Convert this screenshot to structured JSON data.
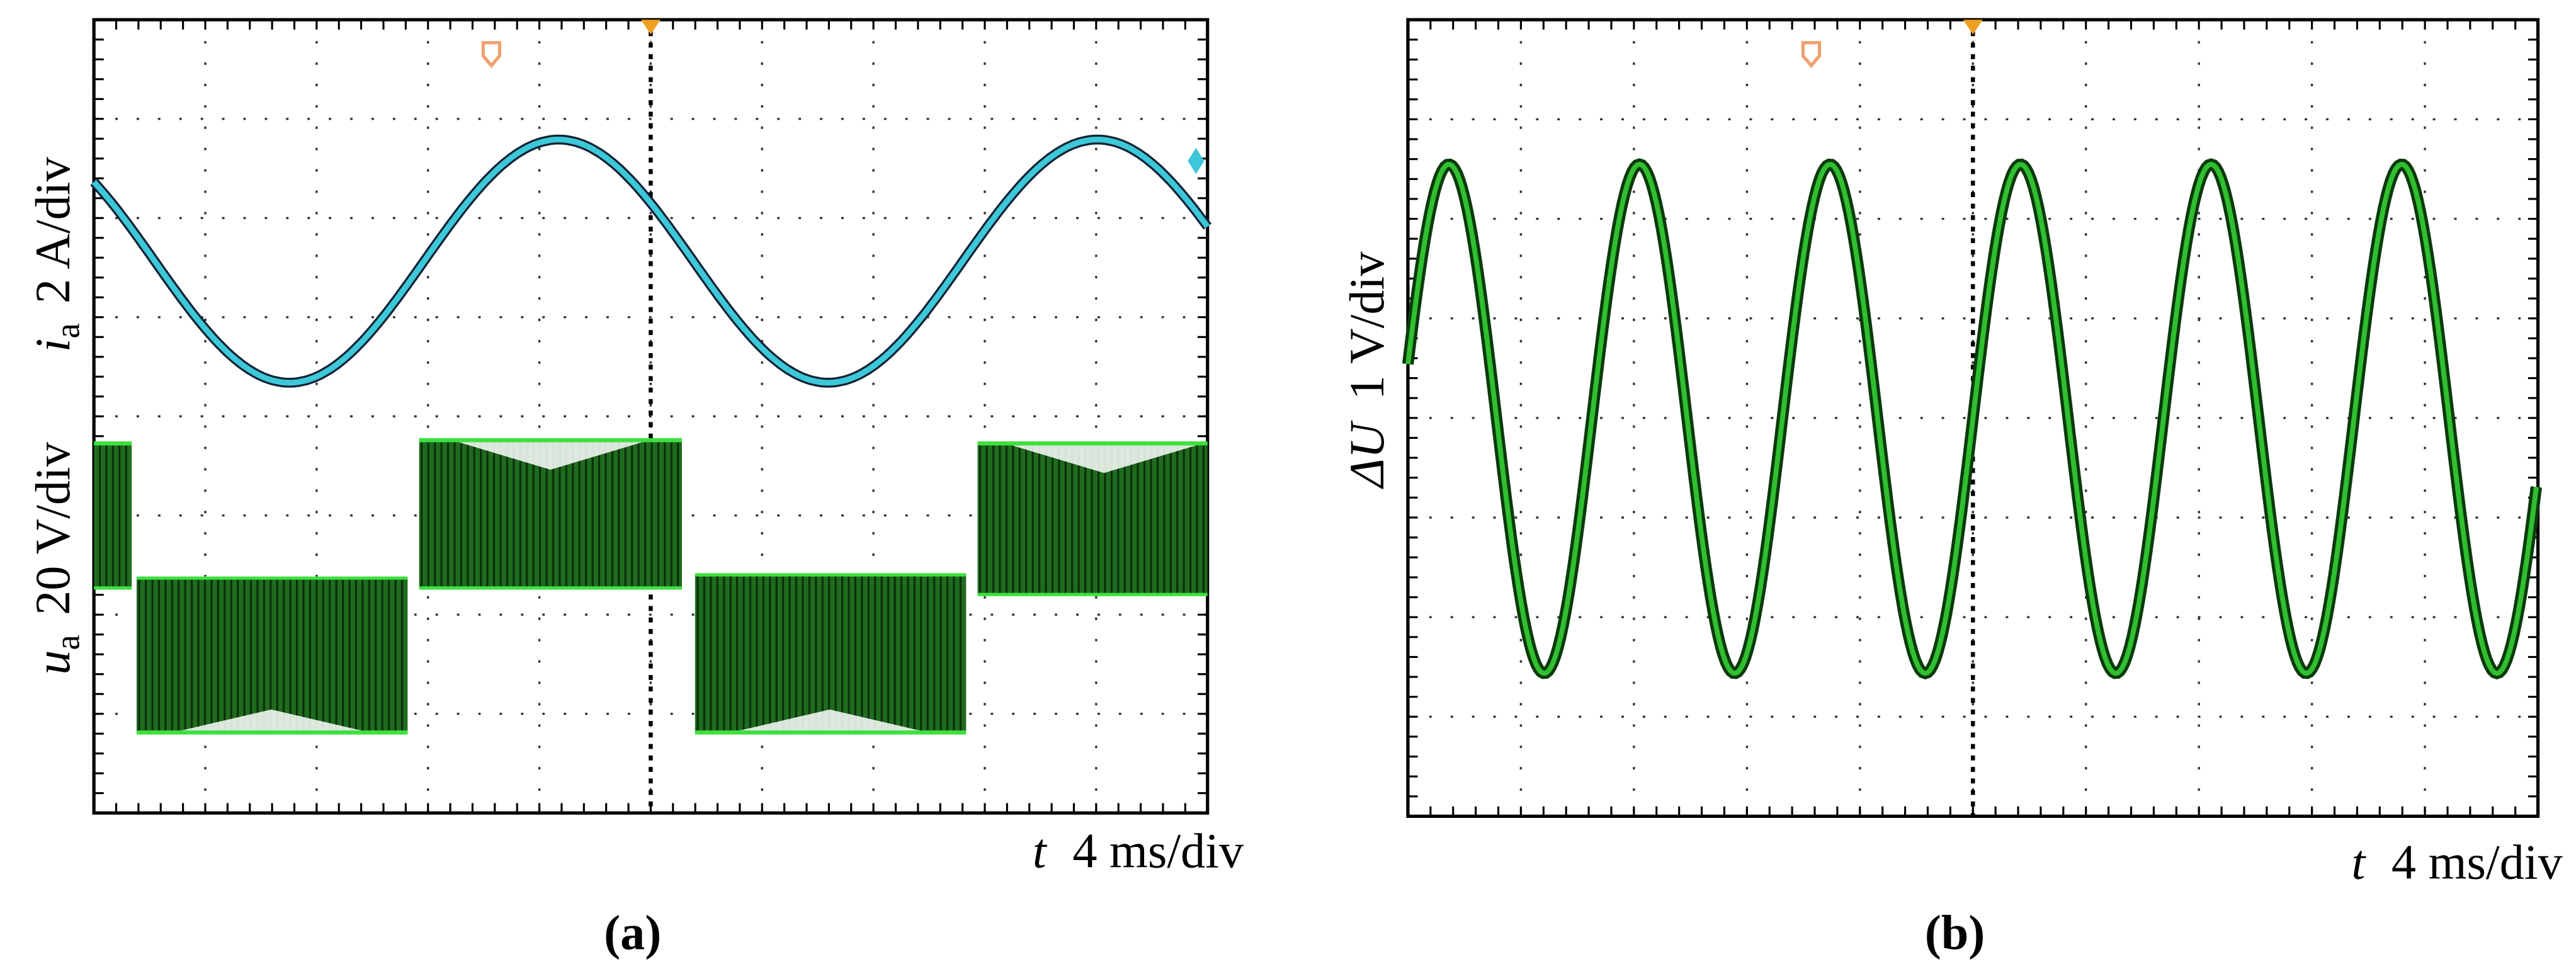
{
  "panels": [
    {
      "label": "(a)",
      "y_labels": [
        {
          "symbol": "i",
          "subscript": "a",
          "scale": "2 A/div"
        },
        {
          "symbol": "u",
          "subscript": "a",
          "scale": "20 V/div"
        }
      ],
      "x_label": {
        "symbol": "t",
        "scale": "4 ms/div"
      }
    },
    {
      "label": "(b)",
      "y_labels": [
        {
          "symbol": "ΔU",
          "scale": "1 V/div"
        }
      ],
      "x_label": {
        "symbol": "t",
        "scale": "4 ms/div"
      }
    }
  ]
}
